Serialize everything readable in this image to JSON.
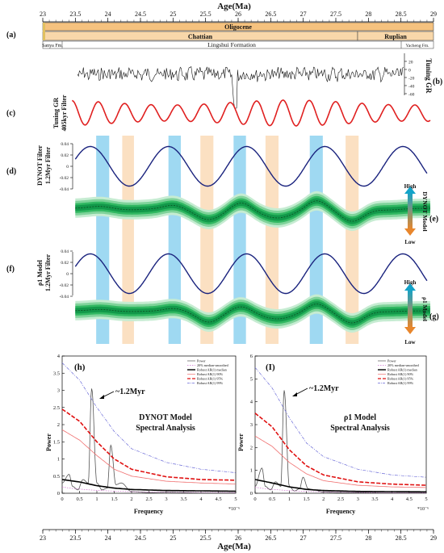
{
  "age_axis": {
    "title": "Age(Ma)",
    "ticks": [
      "23",
      "23.5",
      "24",
      "24.5",
      "25",
      "25.5",
      "26",
      "26.5",
      "27",
      "27.5",
      "28",
      "28.5",
      "29"
    ]
  },
  "strat": {
    "epoch": "Oligocene",
    "stages": [
      "Chattian",
      "Ruplian"
    ],
    "formations": [
      "Sanya Fm.",
      "Lingshui Formation",
      "Yacheng Fm."
    ],
    "colors": {
      "epoch": "#f5c27f",
      "stage": "#f8d7aa",
      "formation": "#ffffff",
      "sanya_strip": "#e0c060"
    }
  },
  "panel_labels": {
    "a": "(a)",
    "b": "(b)",
    "c": "(c)",
    "d": "(d)",
    "e": "(e)",
    "f": "(f)",
    "g": "(g)",
    "h": "(h)",
    "i": "(I)"
  },
  "panel_b": {
    "ylabel": "Tuning GR",
    "ticks": [
      "20",
      "0",
      "-20",
      "-40",
      "-60"
    ]
  },
  "panel_c": {
    "ylabel_line1": "Tuning GR",
    "ylabel_line2": "405kyr Filter",
    "color": "#e02020"
  },
  "panel_d": {
    "ylabel_line1": "DYNOT Filter",
    "ylabel_line2": "1.2Myr Filter",
    "ticks": [
      "0.04",
      "0.02",
      "0",
      "-0.02",
      "-0.04"
    ],
    "color": "#1a237e"
  },
  "panel_e": {
    "high": "High",
    "low": "Low",
    "side": "DYNOT Model"
  },
  "panel_f": {
    "ylabel_line1": "ρ1 Model",
    "ylabel_line2": "1.2Myr Filter",
    "ticks": [
      "0.04",
      "0.02",
      "0",
      "-0.02",
      "-0.04"
    ],
    "color": "#1a237e"
  },
  "panel_g": {
    "high": "High",
    "low": "Low",
    "side": "ρ1 Model"
  },
  "spectral_h": {
    "title_line1": "DYNOT Model",
    "title_line2": "Spectral Analysis",
    "annotation": "~1.2Myr",
    "xlabel": "Frequency",
    "ylabel": "Power",
    "xunit": "*10⁻⁶",
    "xticks": [
      "0",
      "0.5",
      "1",
      "1.5",
      "2",
      "2.5",
      "3",
      "3.5",
      "4",
      "4.5",
      "5"
    ],
    "yticks": [
      "0",
      "0.5",
      "1",
      "1.5",
      "2",
      "2.5",
      "3",
      "3.5",
      "4"
    ],
    "legend": [
      "Power",
      "20% median-smoothed",
      "Robust AR(1) median",
      "Robust AR(1) 90%",
      "Robust AR(1) 95%",
      "Robust AR(1) 99%"
    ]
  },
  "spectral_i": {
    "title_line1": "ρ1 Model",
    "title_line2": "Spectral Analysis",
    "annotation": "~1.2Myr",
    "xlabel": "Frequency",
    "ylabel": "Power",
    "xunit": "*10⁻⁶",
    "xticks": [
      "0",
      "0.5",
      "1",
      "1.5",
      "2",
      "2.5",
      "3",
      "3.5",
      "4",
      "4.5",
      "5"
    ],
    "yticks": [
      "0",
      "1",
      "2",
      "3",
      "4",
      "5",
      "6"
    ],
    "legend": [
      "Power",
      "20% median-smoothed",
      "Robust AR(1) median",
      "Robust AR(1) 90%",
      "Robust AR(1) 95%",
      "Robust AR(1) 99%"
    ]
  },
  "chart_data": [
    {
      "type": "line",
      "name": "Tuning GR 405kyr Filter",
      "x_range": [
        23,
        29
      ],
      "period_Myr": 0.405
    },
    {
      "type": "line",
      "name": "DYNOT Filter 1.2Myr Filter",
      "x_range": [
        23,
        29
      ],
      "period_Myr": 1.2,
      "ylim": [
        -0.04,
        0.04
      ],
      "amplitude": 0.035
    },
    {
      "type": "line",
      "name": "ρ1 Model 1.2Myr Filter",
      "x_range": [
        23,
        29
      ],
      "period_Myr": 1.2,
      "ylim": [
        -0.04,
        0.04
      ],
      "amplitude": 0.035
    },
    {
      "type": "line",
      "title": "DYNOT Model Spectral Analysis",
      "xlabel": "Frequency",
      "ylabel": "Power",
      "xlim": [
        0,
        5
      ],
      "ylim": [
        0,
        4
      ],
      "peak": {
        "label": "~1.2Myr",
        "frequency": 0.85,
        "power": 3.05
      },
      "series": [
        {
          "name": "Power",
          "x": [
            0,
            0.2,
            0.3,
            0.45,
            0.6,
            0.75,
            0.85,
            1.0,
            1.15,
            1.3,
            1.4,
            1.55,
            1.7,
            2.0,
            2.5,
            3.0,
            4.0,
            5.0
          ],
          "y": [
            0.3,
            0.55,
            0.2,
            0.1,
            0.4,
            0.3,
            3.05,
            0.3,
            0.1,
            0.15,
            1.4,
            0.25,
            0.3,
            0.05,
            0.02,
            0.03,
            0.01,
            0.01
          ]
        },
        {
          "name": "Robust AR(1) median",
          "x": [
            0,
            0.5,
            1,
            1.5,
            2,
            3,
            4,
            5
          ],
          "y": [
            0.4,
            0.33,
            0.22,
            0.15,
            0.11,
            0.08,
            0.07,
            0.06
          ]
        },
        {
          "name": "Robust AR(1) 90%",
          "x": [
            0,
            0.5,
            1,
            1.5,
            2,
            3,
            4,
            5
          ],
          "y": [
            1.85,
            1.55,
            1.1,
            0.7,
            0.5,
            0.35,
            0.3,
            0.27
          ]
        },
        {
          "name": "Robust AR(1) 95%",
          "x": [
            0,
            0.5,
            1,
            1.5,
            2,
            3,
            4,
            5
          ],
          "y": [
            2.45,
            2.1,
            1.5,
            1.0,
            0.7,
            0.48,
            0.4,
            0.38
          ]
        },
        {
          "name": "Robust AR(1) 99%",
          "x": [
            0,
            0.5,
            1,
            1.5,
            2,
            3,
            4,
            5
          ],
          "y": [
            3.8,
            3.3,
            2.5,
            1.8,
            1.3,
            0.9,
            0.7,
            0.6
          ]
        }
      ]
    },
    {
      "type": "line",
      "title": "ρ1 Model Spectral Analysis",
      "xlabel": "Frequency",
      "ylabel": "Power",
      "xlim": [
        0,
        5
      ],
      "ylim": [
        0,
        6
      ],
      "peak": {
        "label": "~1.2Myr",
        "frequency": 0.85,
        "power": 4.5
      },
      "series": [
        {
          "name": "Power",
          "x": [
            0,
            0.2,
            0.3,
            0.45,
            0.6,
            0.75,
            0.85,
            1.0,
            1.15,
            1.3,
            1.4,
            1.55,
            1.7,
            2.0,
            2.5,
            3.0,
            4.0,
            5.0
          ],
          "y": [
            0.3,
            1.1,
            0.3,
            0.15,
            0.5,
            0.3,
            4.5,
            0.3,
            0.1,
            0.2,
            0.7,
            0.2,
            0.15,
            0.05,
            0.03,
            0.03,
            0.01,
            0.01
          ]
        },
        {
          "name": "Robust AR(1) median",
          "x": [
            0,
            0.5,
            1,
            1.5,
            2,
            3,
            4,
            5
          ],
          "y": [
            0.6,
            0.45,
            0.28,
            0.17,
            0.12,
            0.08,
            0.07,
            0.06
          ]
        },
        {
          "name": "Robust AR(1) 90%",
          "x": [
            0,
            0.5,
            1,
            1.5,
            2,
            3,
            4,
            5
          ],
          "y": [
            2.5,
            2.05,
            1.35,
            0.85,
            0.55,
            0.35,
            0.28,
            0.25
          ]
        },
        {
          "name": "Robust AR(1) 95%",
          "x": [
            0,
            0.5,
            1,
            1.5,
            2,
            3,
            4,
            5
          ],
          "y": [
            3.5,
            2.9,
            1.9,
            1.2,
            0.8,
            0.5,
            0.4,
            0.35
          ]
        },
        {
          "name": "Robust AR(1) 99%",
          "x": [
            0,
            0.5,
            1,
            1.5,
            2,
            3,
            4,
            5
          ],
          "y": [
            5.5,
            4.6,
            3.3,
            2.2,
            1.6,
            1.05,
            0.8,
            0.7
          ]
        }
      ]
    }
  ],
  "highlight_bands": [
    {
      "color": "#9fd9f2",
      "range_Ma": [
        23.82,
        24.02
      ]
    },
    {
      "color": "#fbe0c2",
      "range_Ma": [
        24.22,
        24.4
      ]
    },
    {
      "color": "#9fd9f2",
      "range_Ma": [
        24.93,
        25.12
      ]
    },
    {
      "color": "#fbe0c2",
      "range_Ma": [
        25.42,
        25.62
      ]
    },
    {
      "color": "#9fd9f2",
      "range_Ma": [
        25.93,
        26.12
      ]
    },
    {
      "color": "#fbe0c2",
      "range_Ma": [
        26.42,
        26.62
      ]
    },
    {
      "color": "#9fd9f2",
      "range_Ma": [
        27.1,
        27.3
      ]
    },
    {
      "color": "#fbe0c2",
      "range_Ma": [
        27.65,
        27.85
      ]
    }
  ]
}
